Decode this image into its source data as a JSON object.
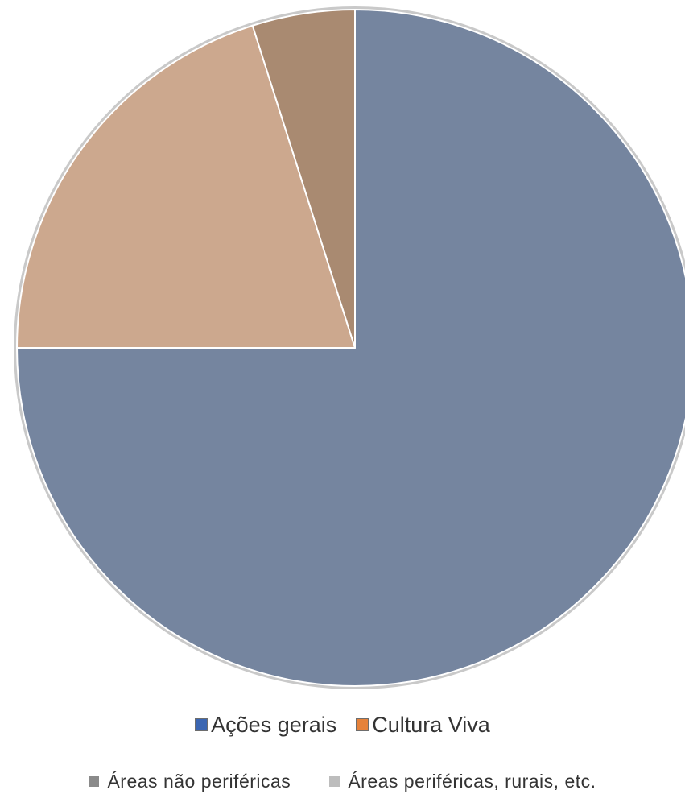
{
  "chart_data": {
    "type": "pie",
    "title": "",
    "slices": [
      {
        "label": "",
        "value": 75.0,
        "color": "#75859f"
      },
      {
        "label": "",
        "value": 20.1,
        "color": "#cca88e"
      },
      {
        "label": "",
        "value": 4.9,
        "color": "#a98a71"
      }
    ],
    "legend": {
      "position": "bottom",
      "rows": [
        [
          {
            "label": "Ações gerais",
            "color": "#3b66b2"
          },
          {
            "label": "Cultura Viva",
            "color": "#e6823a"
          }
        ],
        [
          {
            "label": "Áreas não periféricas",
            "color": "#8a8a8a"
          },
          {
            "label": "Áreas periféricas, rurais, etc.",
            "color": "#bdbdbd"
          }
        ]
      ]
    }
  }
}
